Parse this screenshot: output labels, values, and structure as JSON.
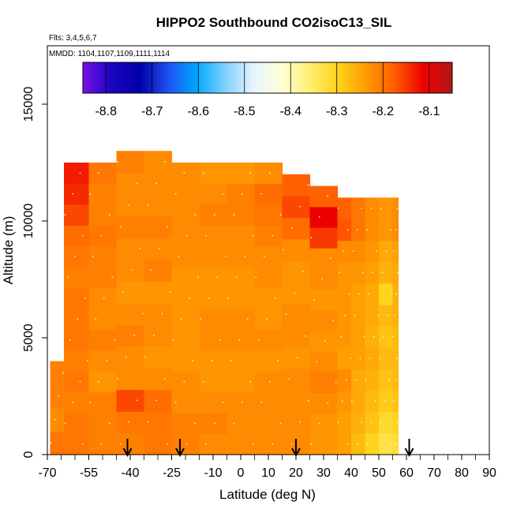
{
  "chart_data": {
    "type": "heatmap",
    "title": "HIPPO2 Southbound CO2isoC13_SIL",
    "flights_note": "Flts: 3,4,5,6,7",
    "dates_note": "MMDD: 1104,1107,1109,1111,1114",
    "xlabel": "Latitude (deg N)",
    "ylabel": "Altitude (m)",
    "xlim": [
      -70,
      90
    ],
    "ylim": [
      0,
      17500
    ],
    "x_ticks": [
      -70,
      -55,
      -40,
      -25,
      -10,
      0,
      10,
      20,
      30,
      40,
      50,
      60,
      70,
      80,
      90
    ],
    "x_tick_labels": [
      "-70",
      "-55",
      "-40",
      "-25",
      "-10",
      "0",
      "10",
      "20",
      "30",
      "40",
      "50",
      "60",
      "70",
      "80",
      "90"
    ],
    "y_ticks": [
      0,
      5000,
      10000,
      15000
    ],
    "y_tick_labels": [
      "0",
      "5000",
      "10000",
      "15000"
    ],
    "colorbar": {
      "range": [
        -8.85,
        -8.05
      ],
      "ticks": [
        -8.8,
        -8.7,
        -8.6,
        -8.5,
        -8.4,
        -8.3,
        -8.2,
        -8.1
      ],
      "tick_labels": [
        "-8.8",
        "-8.7",
        "-8.6",
        "-8.5",
        "-8.4",
        "-8.3",
        "-8.2",
        "-8.1"
      ],
      "colors": [
        "#7c10ee",
        "#1a05c0",
        "#0000a8",
        "#1f50f0",
        "#00a8ff",
        "#7fd0ff",
        "#e6f4ff",
        "#ffffd6",
        "#ffee70",
        "#ffd21a",
        "#ff9a00",
        "#ff5a00",
        "#ee0000",
        "#b01818"
      ]
    },
    "arrow_latitudes": [
      -41,
      -22,
      20,
      61
    ],
    "columns": [
      {
        "lat0": -69,
        "lat1": -64,
        "ztop": 4000,
        "values": [
          -8.2,
          -8.22,
          -8.21,
          -8.21
        ]
      },
      {
        "lat0": -64,
        "lat1": -55,
        "ztop": 12500,
        "values": [
          -8.2,
          -8.2,
          -8.21,
          -8.2,
          -8.21,
          -8.2,
          -8.2,
          -8.2,
          -8.21,
          -8.2,
          -8.19,
          -8.16,
          -8.14,
          -8.13
        ]
      },
      {
        "lat0": -55,
        "lat1": -45,
        "ztop": 12500,
        "values": [
          -8.21,
          -8.21,
          -8.21,
          -8.23,
          -8.22,
          -8.21,
          -8.22,
          -8.22,
          -8.21,
          -8.21,
          -8.2,
          -8.21,
          -8.21,
          -8.2
        ]
      },
      {
        "lat0": -45,
        "lat1": -35,
        "ztop": 13000,
        "values": [
          -8.21,
          -8.2,
          -8.16,
          -8.22,
          -8.22,
          -8.21,
          -8.22,
          -8.23,
          -8.22,
          -8.22,
          -8.21,
          -8.22,
          -8.22,
          -8.21
        ]
      },
      {
        "lat0": -35,
        "lat1": -25,
        "ztop": 13000,
        "values": [
          -8.2,
          -8.2,
          -8.19,
          -8.22,
          -8.23,
          -8.22,
          -8.22,
          -8.23,
          -8.21,
          -8.22,
          -8.21,
          -8.22,
          -8.22,
          -8.22
        ]
      },
      {
        "lat0": -25,
        "lat1": -15,
        "ztop": 12500,
        "values": [
          -8.21,
          -8.21,
          -8.22,
          -8.22,
          -8.23,
          -8.23,
          -8.23,
          -8.23,
          -8.23,
          -8.22,
          -8.22,
          -8.22,
          -8.22,
          -8.22
        ]
      },
      {
        "lat0": -15,
        "lat1": -5,
        "ztop": 12500,
        "values": [
          -8.22,
          -8.21,
          -8.22,
          -8.23,
          -8.23,
          -8.22,
          -8.22,
          -8.23,
          -8.23,
          -8.22,
          -8.22,
          -8.21,
          -8.22,
          -8.23
        ]
      },
      {
        "lat0": -5,
        "lat1": 5,
        "ztop": 12500,
        "values": [
          -8.22,
          -8.22,
          -8.22,
          -8.23,
          -8.23,
          -8.22,
          -8.22,
          -8.23,
          -8.23,
          -8.22,
          -8.22,
          -8.21,
          -8.21,
          -8.23
        ]
      },
      {
        "lat0": 5,
        "lat1": 15,
        "ztop": 12500,
        "values": [
          -8.22,
          -8.22,
          -8.22,
          -8.22,
          -8.23,
          -8.22,
          -8.23,
          -8.23,
          -8.22,
          -8.22,
          -8.21,
          -8.2,
          -8.19,
          -8.22
        ]
      },
      {
        "lat0": 15,
        "lat1": 25,
        "ztop": 12000,
        "values": [
          -8.22,
          -8.22,
          -8.22,
          -8.22,
          -8.23,
          -8.22,
          -8.22,
          -8.23,
          -8.23,
          -8.22,
          -8.19,
          -8.16,
          -8.18
        ]
      },
      {
        "lat0": 25,
        "lat1": 35,
        "ztop": 11500,
        "values": [
          -8.23,
          -8.23,
          -8.22,
          -8.21,
          -8.22,
          -8.23,
          -8.22,
          -8.23,
          -8.22,
          -8.22,
          -8.15,
          -8.11,
          -8.18
        ]
      },
      {
        "lat0": 35,
        "lat1": 40,
        "ztop": 11000,
        "values": [
          -8.24,
          -8.24,
          -8.23,
          -8.22,
          -8.24,
          -8.23,
          -8.23,
          -8.23,
          -8.23,
          -8.22,
          -8.17,
          -8.18
        ]
      },
      {
        "lat0": 40,
        "lat1": 45,
        "ztop": 11000,
        "values": [
          -8.27,
          -8.26,
          -8.25,
          -8.25,
          -8.24,
          -8.24,
          -8.24,
          -8.24,
          -8.23,
          -8.22,
          -8.2,
          -8.2
        ]
      },
      {
        "lat0": 45,
        "lat1": 50,
        "ztop": 11000,
        "values": [
          -8.3,
          -8.28,
          -8.27,
          -8.26,
          -8.25,
          -8.26,
          -8.25,
          -8.25,
          -8.24,
          -8.23,
          -8.22,
          -8.22
        ]
      },
      {
        "lat0": 50,
        "lat1": 55,
        "ztop": 11000,
        "values": [
          -8.33,
          -8.31,
          -8.29,
          -8.28,
          -8.27,
          -8.28,
          -8.27,
          -8.3,
          -8.26,
          -8.25,
          -8.23,
          -8.23
        ]
      },
      {
        "lat0": 55,
        "lat1": 57,
        "ztop": 11000,
        "values": [
          -8.32,
          -8.3,
          -8.28,
          -8.27,
          -8.27,
          -8.27,
          -8.26,
          -8.26,
          -8.25,
          -8.24,
          -8.22,
          -8.22
        ]
      }
    ]
  }
}
